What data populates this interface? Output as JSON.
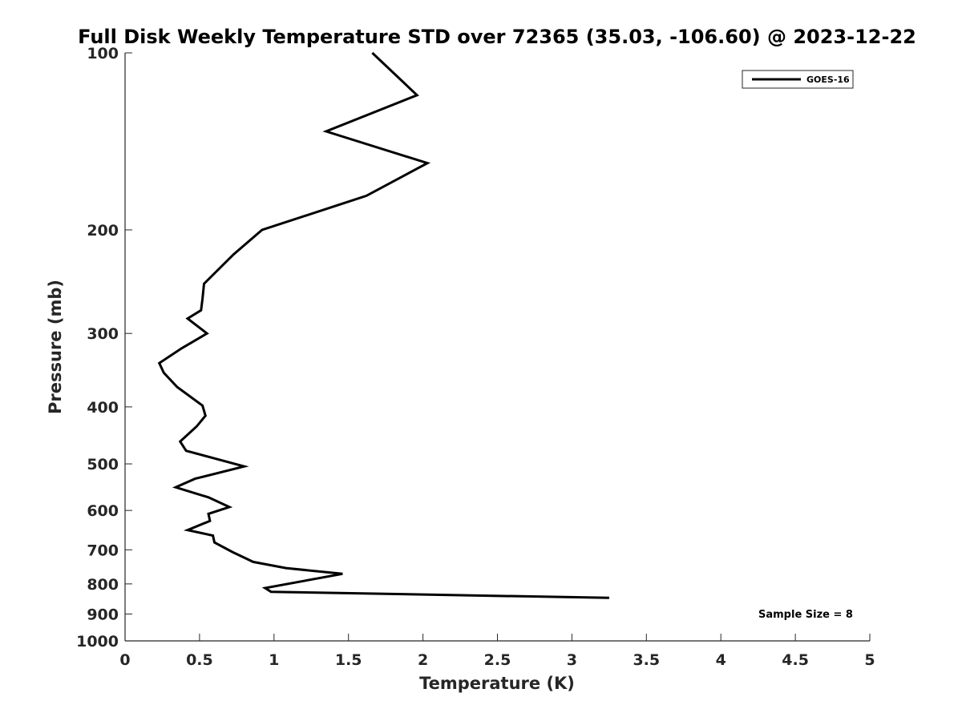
{
  "chart_data": {
    "type": "line",
    "title": "Full Disk Weekly Temperature STD over 72365 (35.03, -106.60) @ 2023-12-22",
    "xlabel": "Temperature (K)",
    "ylabel": "Pressure (mb)",
    "xlim": [
      0,
      5
    ],
    "ylim": [
      1000,
      100
    ],
    "yscale": "log",
    "y_reversed": true,
    "grid": false,
    "xticks": [
      "0",
      "0.5",
      "1",
      "1.5",
      "2",
      "2.5",
      "3",
      "3.5",
      "4",
      "4.5",
      "5"
    ],
    "yticks": [
      "100",
      "200",
      "300",
      "400",
      "500",
      "600",
      "700",
      "800",
      "900",
      "1000"
    ],
    "legend": {
      "placement": "top-right",
      "entries": [
        "GOES-16"
      ]
    },
    "annotation": "Sample Size = 8",
    "series": [
      {
        "name": "GOES-16",
        "color": "#000000",
        "points": [
          [
            1.66,
            100
          ],
          [
            1.96,
            118
          ],
          [
            1.35,
            136
          ],
          [
            2.03,
            154
          ],
          [
            1.62,
            175
          ],
          [
            0.92,
            200
          ],
          [
            0.73,
            220
          ],
          [
            0.53,
            247
          ],
          [
            0.52,
            262
          ],
          [
            0.51,
            274
          ],
          [
            0.42,
            283
          ],
          [
            0.55,
            300
          ],
          [
            0.38,
            318
          ],
          [
            0.23,
            337
          ],
          [
            0.26,
            350
          ],
          [
            0.35,
            370
          ],
          [
            0.52,
            398
          ],
          [
            0.54,
            414
          ],
          [
            0.48,
            432
          ],
          [
            0.37,
            458
          ],
          [
            0.41,
            475
          ],
          [
            0.8,
            505
          ],
          [
            0.47,
            530
          ],
          [
            0.34,
            548
          ],
          [
            0.56,
            570
          ],
          [
            0.7,
            592
          ],
          [
            0.56,
            608
          ],
          [
            0.57,
            625
          ],
          [
            0.42,
            648
          ],
          [
            0.59,
            662
          ],
          [
            0.6,
            680
          ],
          [
            0.72,
            706
          ],
          [
            0.86,
            734
          ],
          [
            1.08,
            752
          ],
          [
            1.46,
            769
          ],
          [
            0.94,
            813
          ],
          [
            0.98,
            825
          ],
          [
            3.25,
            845
          ]
        ]
      }
    ]
  }
}
